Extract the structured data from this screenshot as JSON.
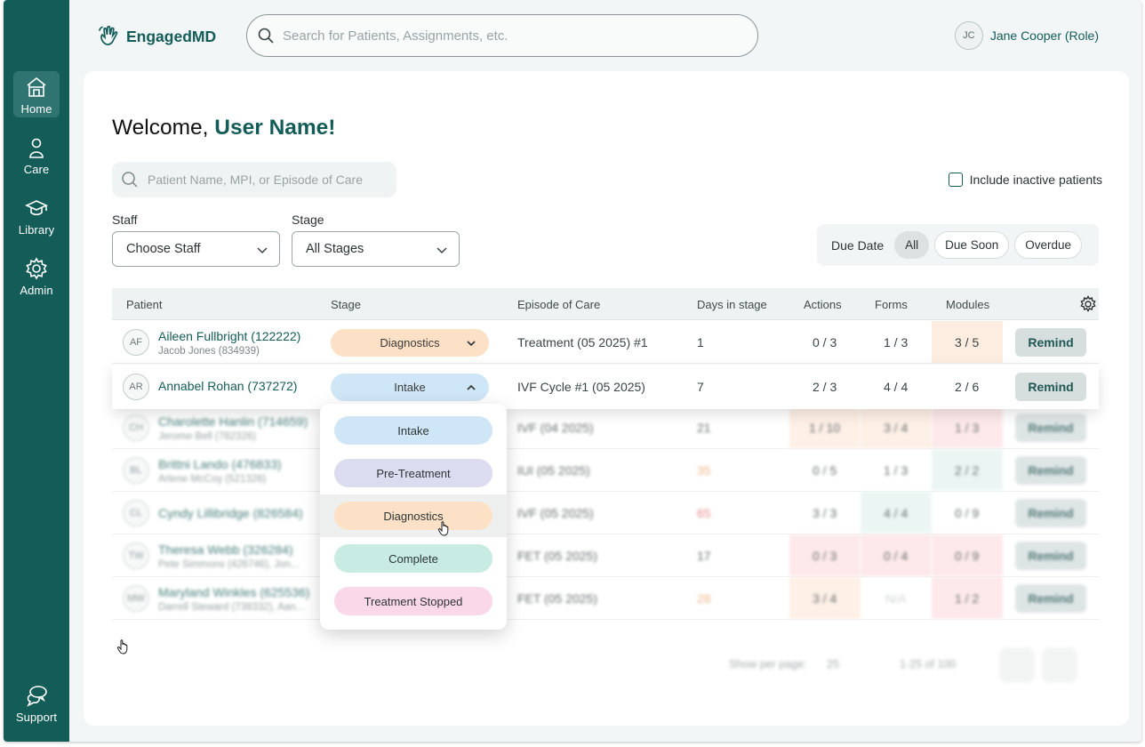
{
  "app": {
    "brand": "EngagedMD",
    "search_placeholder": "Search for Patients, Assignments, etc.",
    "user_initials": "JC",
    "user_name": "Jane Cooper (Role)"
  },
  "sidebar": {
    "items": [
      {
        "label": "Home",
        "icon": "home-icon",
        "active": true
      },
      {
        "label": "Care",
        "icon": "person-icon"
      },
      {
        "label": "Library",
        "icon": "graduation-cap-icon"
      },
      {
        "label": "Admin",
        "icon": "gear-icon"
      },
      {
        "label": "Support",
        "icon": "chat-bubbles-icon"
      }
    ]
  },
  "main": {
    "welcome_prefix": "Welcome,",
    "welcome_name": "User Name!",
    "patient_search_placeholder": "Patient Name, MPI, or Episode of Care",
    "include_inactive": "Include inactive patients",
    "staff_label": "Staff",
    "staff_value": "Choose Staff",
    "stage_label": "Stage",
    "stage_value": "All Stages",
    "due_date_label": "Due Date",
    "due_filters": [
      "All",
      "Due Soon",
      "Overdue"
    ],
    "due_active": "All"
  },
  "table": {
    "headers": [
      "Patient",
      "Stage",
      "Episode of Care",
      "Days in stage",
      "Actions",
      "Forms",
      "Modules"
    ],
    "remind_label": "Remind",
    "rows": [
      {
        "initials": "AF",
        "name": "Aileen Fullbright (122222)",
        "sub": "Jacob Jones (834939)",
        "stage": "Diagnostics",
        "episode": "Treatment (05 2025) #1",
        "days": "1",
        "actions": "0 / 3",
        "forms": "1 / 3",
        "modules": "3 / 5"
      },
      {
        "initials": "AR",
        "name": "Annabel Rohan (737272)",
        "sub": "",
        "stage": "Intake",
        "episode": "IVF Cycle #1 (05 2025)",
        "days": "7",
        "actions": "2 / 3",
        "forms": "4 / 4",
        "modules": "2 / 6"
      },
      {
        "initials": "CH",
        "name": "Charolette Hanlin (714659)",
        "sub": "Jerome Bell (782326)",
        "episode": "IVF (04 2025)",
        "days": "21",
        "actions": "1 / 10",
        "forms": "3 / 4",
        "modules": "1 / 3"
      },
      {
        "initials": "BL",
        "name": "Brittni Lando (476833)",
        "sub": "Arlene McCoy (521326)",
        "episode": "IUI (05 2025)",
        "days": "35",
        "actions": "0 / 5",
        "forms": "1 / 3",
        "modules": "2 / 2"
      },
      {
        "initials": "CL",
        "name": "Cyndy Lillibridge (826584)",
        "sub": "",
        "episode": "IVF (05 2025)",
        "days": "65",
        "actions": "3 / 3",
        "forms": "4 / 4",
        "modules": "0 / 9"
      },
      {
        "initials": "TW",
        "name": "Theresa Webb (326284)",
        "sub": "Pete Simmons (426746), Jon...",
        "episode": "FET (05 2025)",
        "days": "17",
        "actions": "0 / 3",
        "forms": "0 / 4",
        "modules": "0 / 9"
      },
      {
        "initials": "MW",
        "name": "Maryland Winkles (625536)",
        "sub": "Darrell Steward (738332), Aan...",
        "episode": "FET (05 2025)",
        "days": "28",
        "actions": "3 / 4",
        "forms": "N/A",
        "modules": "1 / 2"
      }
    ]
  },
  "stage_options": [
    "Intake",
    "Pre-Treatment",
    "Diagnostics",
    "Complete",
    "Treatment Stopped"
  ],
  "stage_hovered": "Diagnostics",
  "pagination": {
    "per_page_label": "Show per page:",
    "per_page_value": "25",
    "range": "1-25 of 100"
  },
  "colors": {
    "brand": "#145c58",
    "intake": "#cfe6f6",
    "pre_treatment": "#dcdcf0",
    "diagnostics": "#fde1c6",
    "complete": "#c8ebe3",
    "treatment_stopped": "#fbd7ea",
    "warn_cell": "#fdece0",
    "danger_cell": "#fde4e4",
    "ok_cell": "#e6f4f1"
  }
}
